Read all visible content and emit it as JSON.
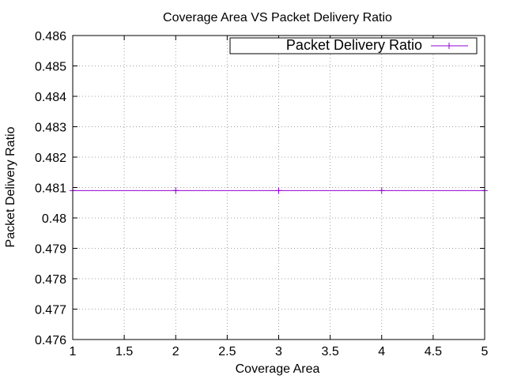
{
  "chart_data": {
    "type": "line",
    "title": "Coverage Area VS Packet Delivery Ratio",
    "xlabel": "Coverage Area",
    "ylabel": "Packet Delivery Ratio",
    "xlim": [
      1,
      5
    ],
    "ylim": [
      0.476,
      0.486
    ],
    "xticks": [
      "1",
      "1.5",
      "2",
      "2.5",
      "3",
      "3.5",
      "4",
      "4.5",
      "5"
    ],
    "yticks": [
      "0.476",
      "0.477",
      "0.478",
      "0.479",
      "0.48",
      "0.481",
      "0.482",
      "0.483",
      "0.484",
      "0.485",
      "0.486"
    ],
    "grid": true,
    "legend_position": "top-right",
    "series": [
      {
        "name": "Packet Delivery Ratio",
        "color": "#9400d3",
        "marker": "plus",
        "x": [
          1,
          2,
          3,
          4,
          5
        ],
        "y": [
          0.4809,
          0.4809,
          0.4809,
          0.4809,
          0.4809
        ]
      }
    ]
  }
}
